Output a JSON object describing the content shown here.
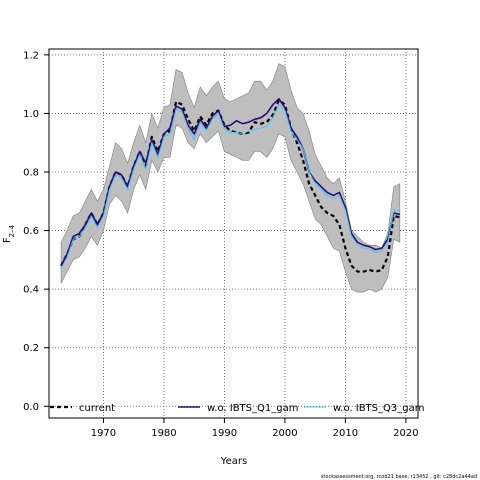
{
  "chart_data": {
    "type": "line",
    "title": "",
    "xlabel": "Years",
    "ylabel_base": "F",
    "ylabel_sub": "2–4",
    "xlim": [
      1961,
      2022
    ],
    "ylim": [
      -0.04,
      1.22
    ],
    "x_ticks": [
      1970,
      1980,
      1990,
      2000,
      2010,
      2020
    ],
    "y_ticks": [
      0.0,
      0.2,
      0.4,
      0.6,
      0.8,
      1.0,
      1.2
    ],
    "y_tick_labels": [
      "0.0",
      "0.2",
      "0.4",
      "0.6",
      "0.8",
      "1.0",
      "1.2"
    ],
    "grid": true,
    "legend_position": "bottom",
    "years": [
      1963,
      1964,
      1965,
      1966,
      1967,
      1968,
      1969,
      1970,
      1971,
      1972,
      1973,
      1974,
      1975,
      1976,
      1977,
      1978,
      1979,
      1980,
      1981,
      1982,
      1983,
      1984,
      1985,
      1986,
      1987,
      1988,
      1989,
      1990,
      1991,
      1992,
      1993,
      1994,
      1995,
      1996,
      1997,
      1998,
      1999,
      2000,
      2001,
      2002,
      2003,
      2004,
      2005,
      2006,
      2007,
      2008,
      2009,
      2010,
      2011,
      2012,
      2013,
      2014,
      2015,
      2016,
      2017,
      2018,
      2019
    ],
    "band": {
      "upper": [
        0.56,
        0.6,
        0.65,
        0.66,
        0.7,
        0.74,
        0.7,
        0.74,
        0.82,
        0.9,
        0.88,
        0.83,
        0.9,
        0.96,
        0.9,
        1.0,
        0.95,
        1.02,
        1.03,
        1.15,
        1.14,
        1.07,
        1.02,
        1.09,
        1.06,
        1.09,
        1.11,
        1.05,
        1.04,
        1.05,
        1.06,
        1.07,
        1.11,
        1.11,
        1.08,
        1.11,
        1.17,
        1.16,
        1.08,
        1.02,
        1.0,
        0.94,
        0.86,
        0.82,
        0.78,
        0.76,
        0.78,
        0.7,
        0.6,
        0.58,
        0.56,
        0.55,
        0.55,
        0.54,
        0.59,
        0.75,
        0.76
      ],
      "lower": [
        0.42,
        0.46,
        0.5,
        0.51,
        0.54,
        0.58,
        0.55,
        0.6,
        0.69,
        0.72,
        0.7,
        0.66,
        0.74,
        0.79,
        0.74,
        0.84,
        0.8,
        0.85,
        0.85,
        0.96,
        0.95,
        0.9,
        0.88,
        0.93,
        0.9,
        0.92,
        0.94,
        0.87,
        0.86,
        0.85,
        0.84,
        0.84,
        0.87,
        0.87,
        0.85,
        0.88,
        0.93,
        0.92,
        0.84,
        0.8,
        0.76,
        0.7,
        0.64,
        0.62,
        0.58,
        0.54,
        0.53,
        0.46,
        0.4,
        0.39,
        0.39,
        0.4,
        0.39,
        0.4,
        0.44,
        0.57,
        0.56
      ]
    },
    "series": [
      {
        "name": "current",
        "color": "#000000",
        "dash": "4,3",
        "width": 2.2,
        "values": [
          0.48,
          0.52,
          0.57,
          0.58,
          0.62,
          0.66,
          0.62,
          0.66,
          0.75,
          0.8,
          0.79,
          0.75,
          0.82,
          0.87,
          0.82,
          0.92,
          0.87,
          0.93,
          0.94,
          1.04,
          1.03,
          0.98,
          0.94,
          0.99,
          0.96,
          1.0,
          1.01,
          0.96,
          0.94,
          0.935,
          0.93,
          0.935,
          0.97,
          0.965,
          0.97,
          0.995,
          1.045,
          1.03,
          0.95,
          0.9,
          0.84,
          0.76,
          0.72,
          0.68,
          0.66,
          0.65,
          0.62,
          0.54,
          0.48,
          0.46,
          0.46,
          0.465,
          0.46,
          0.465,
          0.51,
          0.65,
          0.645
        ]
      },
      {
        "name": "w.o. IBTS_Q1_gam",
        "color": "#2b0b7a",
        "dash": "",
        "width": 1.6,
        "values": [
          0.48,
          0.52,
          0.58,
          0.59,
          0.62,
          0.66,
          0.62,
          0.66,
          0.75,
          0.8,
          0.79,
          0.75,
          0.82,
          0.87,
          0.83,
          0.91,
          0.86,
          0.93,
          0.95,
          1.025,
          1.015,
          0.96,
          0.93,
          0.98,
          0.95,
          0.99,
          1.01,
          0.955,
          0.96,
          0.975,
          0.965,
          0.97,
          0.98,
          0.985,
          1.0,
          1.03,
          1.05,
          1.02,
          0.95,
          0.92,
          0.88,
          0.8,
          0.77,
          0.75,
          0.73,
          0.72,
          0.73,
          0.68,
          0.59,
          0.56,
          0.55,
          0.545,
          0.535,
          0.54,
          0.57,
          0.66,
          0.655
        ]
      },
      {
        "name": "w.o. IBTS_Q3_gam",
        "color": "#41c8f4",
        "dash": "",
        "width": 1.0,
        "values": [
          0.47,
          0.51,
          0.57,
          0.58,
          0.61,
          0.65,
          0.61,
          0.65,
          0.74,
          0.79,
          0.78,
          0.74,
          0.81,
          0.86,
          0.81,
          0.9,
          0.85,
          0.92,
          0.93,
          1.015,
          1.005,
          0.95,
          0.91,
          0.97,
          0.94,
          0.98,
          1.0,
          0.945,
          0.935,
          0.935,
          0.93,
          0.94,
          0.945,
          0.95,
          0.955,
          0.985,
          1.03,
          1.01,
          0.94,
          0.91,
          0.88,
          0.8,
          0.76,
          0.74,
          0.72,
          0.71,
          0.72,
          0.67,
          0.58,
          0.55,
          0.54,
          0.535,
          0.525,
          0.53,
          0.56,
          0.67,
          0.67
        ]
      }
    ],
    "band_color": "#bebebe",
    "band_edge_color": "#7f7f7f",
    "footnote": "stockassessment.org, rcod21 base, r13452 , git: c28dc2a44ad"
  }
}
